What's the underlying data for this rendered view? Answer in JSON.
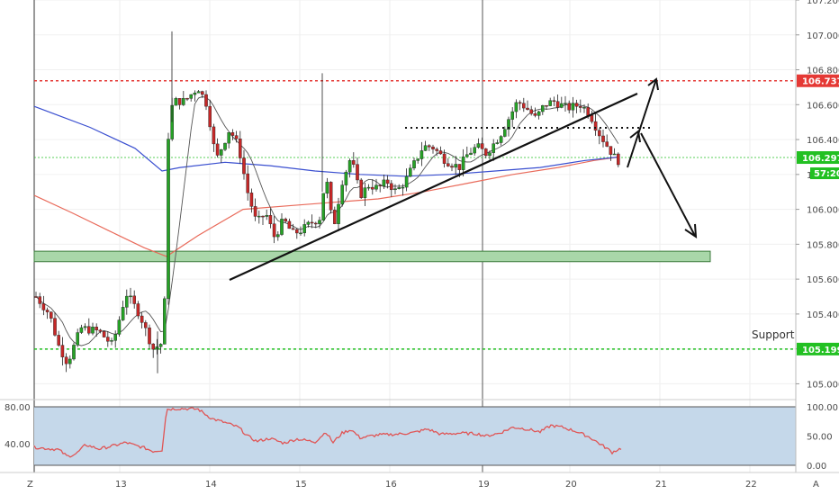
{
  "chart_data": {
    "type": "candlestick",
    "price_axis": {
      "ticks": [
        "107.200",
        "107.000",
        "106.800",
        "106.600",
        "106.400",
        "106.200",
        "106.000",
        "105.800",
        "105.600",
        "105.400",
        "105.200",
        "105.000"
      ],
      "ylim": [
        104.93,
        107.2
      ]
    },
    "rsi_axis": {
      "left_ticks": [
        "80.00",
        "40.00"
      ],
      "right_ticks": [
        "100.00",
        "50.00",
        "0.00"
      ],
      "ylim": [
        -5,
        105
      ],
      "upper": 80,
      "lower": 40
    },
    "time_axis": {
      "labels": [
        "13",
        "14",
        "15",
        "16",
        "19",
        "20",
        "21",
        "22"
      ],
      "corner_left": "Z",
      "corner_right": "A"
    },
    "levels": {
      "resistance": {
        "value": 106.737,
        "label": "106.737",
        "color": "#e53935"
      },
      "support": {
        "value": 105.199,
        "label": "105.199",
        "color": "#22c022",
        "text": "Support"
      },
      "current_price": {
        "value": 106.297,
        "label": "106.297",
        "color": "#22c022"
      },
      "countdown": "57:20"
    },
    "support_zone": {
      "from": 105.7,
      "to": 105.76
    },
    "indicators": [
      "candles",
      "blue_ma",
      "red_ma",
      "gray_ma",
      "rsi"
    ],
    "colors": {
      "up": "#26a226",
      "down": "#c62828",
      "blue_ma": "#3a4fd0",
      "red_ma": "#e96a5a",
      "gray_ma": "#555555",
      "rsi_line": "#e05555",
      "rsi_band": "#c5d8ea",
      "zone_fill": "#a9d7a9"
    }
  }
}
